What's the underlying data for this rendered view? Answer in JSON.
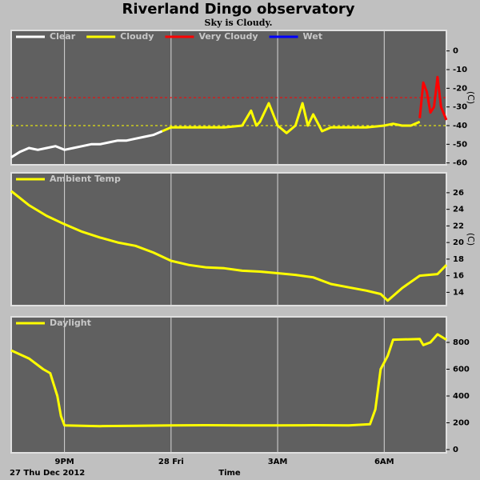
{
  "title": "Riverland Dingo observatory",
  "subtitle": "Sky is Cloudy.",
  "chart_data": [
    {
      "type": "line",
      "ylabel": "(C)",
      "xlim": [
        19.5,
        31.75
      ],
      "xticks": [
        21,
        24,
        27,
        30
      ],
      "ylim": [
        -61,
        11
      ],
      "yticks": [
        0,
        -10,
        -20,
        -30,
        -40,
        -50,
        -60
      ],
      "thresholds": [
        {
          "value": -25,
          "color": "#ff0000"
        },
        {
          "value": -40,
          "color": "#ffff00"
        }
      ],
      "series": [
        {
          "name": "Clear",
          "color": "#ffffff",
          "x": [
            19.5,
            19.75,
            20,
            20.25,
            20.5,
            20.75,
            21,
            21.25,
            21.5,
            21.75,
            22,
            22.25,
            22.5,
            22.75,
            23,
            23.25,
            23.5,
            23.75
          ],
          "values": [
            -57,
            -54,
            -52,
            -53,
            -52,
            -51,
            -53,
            -52,
            -51,
            -50,
            -50,
            -49,
            -48,
            -48,
            -47,
            -46,
            -45,
            -43
          ]
        },
        {
          "name": "Cloudy",
          "color": "#ffff00",
          "x": [
            23.75,
            24,
            24.5,
            25,
            25.5,
            26,
            26.25,
            26.4,
            26.5,
            26.75,
            27,
            27.25,
            27.5,
            27.7,
            27.85,
            28,
            28.25,
            28.5,
            29,
            29.5,
            30,
            30.25,
            30.5,
            30.75,
            31
          ],
          "values": [
            -43,
            -41,
            -41,
            -41,
            -41,
            -40,
            -32,
            -40,
            -38,
            -28,
            -40,
            -44,
            -40,
            -28,
            -40,
            -34,
            -43,
            -41,
            -41,
            -41,
            -40,
            -39,
            -40,
            -40,
            -38
          ]
        },
        {
          "name": "Very Cloudy",
          "color": "#ff0000",
          "x": [
            31,
            31.1,
            31.2,
            31.3,
            31.4,
            31.5,
            31.6,
            31.75
          ],
          "values": [
            -36,
            -17,
            -22,
            -33,
            -30,
            -14,
            -30,
            -37
          ]
        },
        {
          "name": "Wet",
          "color": "#0000ff",
          "x": [],
          "values": []
        }
      ]
    },
    {
      "type": "line",
      "ylabel": "(C)",
      "xlim": [
        19.5,
        31.75
      ],
      "xticks": [
        21,
        24,
        27,
        30
      ],
      "ylim": [
        12.4,
        28.4
      ],
      "yticks": [
        14,
        16,
        18,
        20,
        22,
        24,
        26
      ],
      "series": [
        {
          "name": "Ambient Temp",
          "color": "#ffff00",
          "x": [
            19.5,
            20,
            20.5,
            21,
            21.5,
            22,
            22.5,
            23,
            23.5,
            24,
            24.5,
            25,
            25.5,
            26,
            26.5,
            27,
            27.5,
            28,
            28.5,
            29,
            29.5,
            29.9,
            30.1,
            30.5,
            31,
            31.5,
            31.75
          ],
          "values": [
            26.2,
            24.5,
            23.2,
            22.2,
            21.3,
            20.6,
            20,
            19.6,
            18.8,
            17.8,
            17.3,
            17,
            16.9,
            16.6,
            16.5,
            16.3,
            16.1,
            15.8,
            15,
            14.6,
            14.2,
            13.8,
            13,
            14.5,
            16,
            16.2,
            17.3
          ]
        }
      ]
    },
    {
      "type": "line",
      "xlabel": "Time",
      "date_label": "27 Thu Dec 2012",
      "xlim": [
        19.5,
        31.75
      ],
      "xticks": [
        {
          "value": 21,
          "label": "9PM"
        },
        {
          "value": 24,
          "label": "28 Fri"
        },
        {
          "value": 27,
          "label": "3AM"
        },
        {
          "value": 30,
          "label": "6AM"
        }
      ],
      "ylim": [
        -24,
        991
      ],
      "yticks": [
        0,
        200,
        400,
        600,
        800
      ],
      "series": [
        {
          "name": "Daylight",
          "color": "#ffff00",
          "x": [
            19.5,
            20,
            20.4,
            20.6,
            20.8,
            20.9,
            21,
            22,
            23,
            24,
            25,
            26,
            27,
            28,
            29,
            29.6,
            29.75,
            29.9,
            30.1,
            30.25,
            31,
            31.1,
            31.3,
            31.5,
            31.75
          ],
          "values": [
            740,
            680,
            600,
            570,
            400,
            250,
            180,
            175,
            178,
            180,
            182,
            180,
            180,
            182,
            180,
            190,
            300,
            600,
            700,
            820,
            825,
            780,
            800,
            860,
            820
          ]
        }
      ]
    }
  ]
}
